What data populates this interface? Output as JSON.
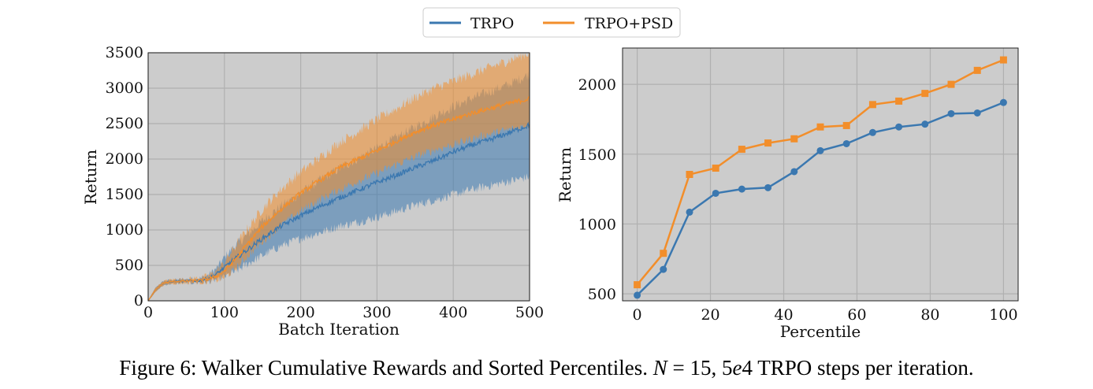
{
  "legend": {
    "entries": [
      {
        "label": "TRPO",
        "color": "#3b78b0"
      },
      {
        "label": "TRPO+PSD",
        "color": "#f28e2b"
      }
    ]
  },
  "colors": {
    "panel_bg": "#cccccc",
    "grid": "#b0b0b0",
    "trpo": "#3b78b0",
    "psd": "#f28e2b"
  },
  "chart_data": [
    {
      "type": "line",
      "title": "",
      "xlabel": "Batch Iteration",
      "ylabel": "Return",
      "xlim": [
        0,
        500
      ],
      "ylim": [
        0,
        3500
      ],
      "xticks": [
        0,
        100,
        200,
        300,
        400,
        500
      ],
      "yticks": [
        0,
        500,
        1000,
        1500,
        2000,
        2500,
        3000,
        3500
      ],
      "x": [
        0,
        5,
        10,
        20,
        30,
        50,
        70,
        80,
        90,
        100,
        110,
        120,
        130,
        150,
        175,
        200,
        225,
        250,
        275,
        300,
        325,
        350,
        375,
        400,
        425,
        450,
        475,
        500
      ],
      "series": [
        {
          "name": "TRPO",
          "mean": [
            0,
            80,
            160,
            250,
            270,
            280,
            290,
            320,
            380,
            470,
            560,
            640,
            720,
            880,
            1060,
            1200,
            1330,
            1450,
            1560,
            1670,
            1770,
            1880,
            1980,
            2100,
            2200,
            2280,
            2380,
            2480
          ],
          "lower": [
            0,
            60,
            130,
            220,
            240,
            250,
            260,
            270,
            300,
            340,
            390,
            450,
            520,
            640,
            780,
            880,
            960,
            1050,
            1110,
            1180,
            1260,
            1350,
            1420,
            1500,
            1570,
            1630,
            1690,
            1750
          ],
          "upper": [
            0,
            100,
            190,
            280,
            295,
            305,
            320,
            370,
            460,
            610,
            730,
            830,
            930,
            1130,
            1340,
            1520,
            1700,
            1860,
            2010,
            2150,
            2300,
            2450,
            2600,
            2740,
            2860,
            2960,
            3060,
            3200
          ]
        },
        {
          "name": "TRPO+PSD",
          "mean": [
            0,
            80,
            160,
            250,
            270,
            280,
            290,
            310,
            350,
            420,
            530,
            660,
            800,
            1050,
            1300,
            1520,
            1700,
            1870,
            2000,
            2120,
            2250,
            2380,
            2480,
            2560,
            2650,
            2720,
            2790,
            2850
          ],
          "lower": [
            0,
            60,
            130,
            220,
            240,
            250,
            260,
            270,
            290,
            330,
            410,
            510,
            630,
            840,
            1070,
            1270,
            1430,
            1560,
            1690,
            1800,
            1920,
            2030,
            2130,
            2200,
            2290,
            2360,
            2420,
            2480
          ],
          "upper": [
            0,
            100,
            190,
            280,
            300,
            310,
            325,
            360,
            430,
            540,
            700,
            860,
            1010,
            1300,
            1580,
            1820,
            2020,
            2230,
            2390,
            2560,
            2710,
            2870,
            3000,
            3100,
            3200,
            3300,
            3400,
            3500
          ]
        }
      ]
    },
    {
      "type": "line",
      "title": "",
      "xlabel": "Percentile",
      "ylabel": "Return",
      "xlim": [
        -4,
        104
      ],
      "ylim": [
        450,
        2260
      ],
      "xticks": [
        0,
        20,
        40,
        60,
        80,
        100
      ],
      "yticks": [
        500,
        1000,
        1500,
        2000
      ],
      "x": [
        0,
        7.14,
        14.29,
        21.43,
        28.57,
        35.71,
        42.86,
        50,
        57.14,
        64.29,
        71.43,
        78.57,
        85.71,
        92.86,
        100
      ],
      "series": [
        {
          "name": "TRPO",
          "marker": "circle",
          "values": [
            490,
            675,
            1085,
            1220,
            1250,
            1260,
            1375,
            1525,
            1575,
            1655,
            1695,
            1715,
            1790,
            1795,
            1870
          ]
        },
        {
          "name": "TRPO+PSD",
          "marker": "square",
          "values": [
            565,
            790,
            1355,
            1400,
            1535,
            1580,
            1610,
            1695,
            1705,
            1855,
            1880,
            1935,
            2000,
            2100,
            2175
          ]
        }
      ]
    }
  ],
  "caption": {
    "prefix": "Figure 6: Walker Cumulative Rewards and Sorted Percentiles.",
    "math_n": "N",
    "equals": " = 15, 5",
    "math_e": "e",
    "suffix": "4 TRPO steps per iteration."
  }
}
